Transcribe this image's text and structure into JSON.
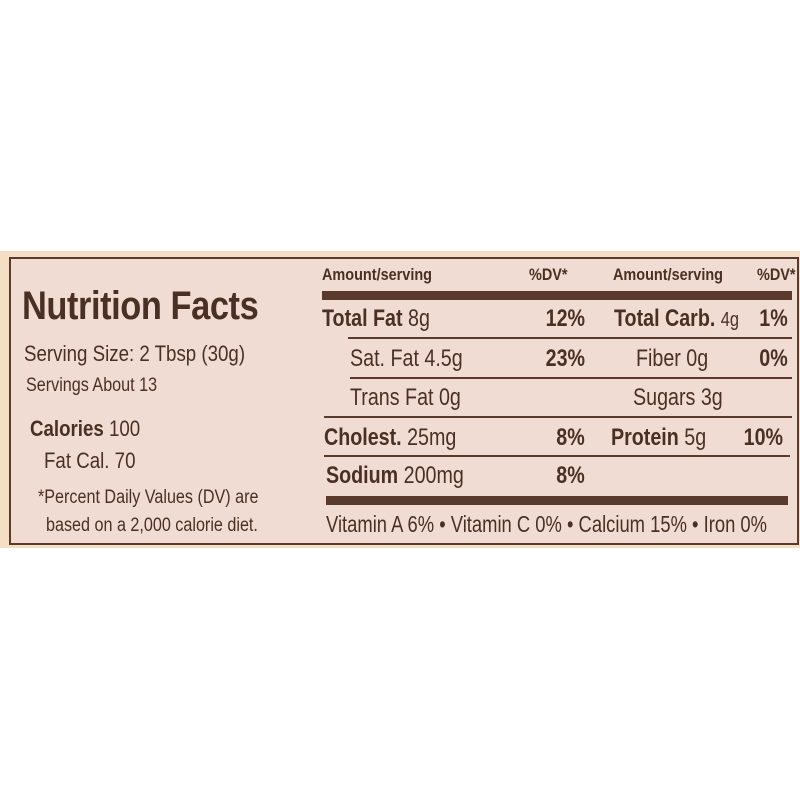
{
  "left": {
    "title": "Nutrition Facts",
    "serving_size": "Serving Size: 2 Tbsp (30g)",
    "servings": "Servings About 13",
    "calories_label": "Calories",
    "calories_value": "100",
    "fat_cal": "Fat Cal. 70",
    "footnote_1": "*Percent Daily Values (DV) are",
    "footnote_2": "based on a 2,000 calorie diet."
  },
  "headers": {
    "amount": "Amount/serving",
    "dv": "%DV*",
    "amount2": "Amount/serving",
    "dv2": "%DV*"
  },
  "rows": [
    {
      "name": "Total Fat",
      "amount": "8g",
      "dv": "12%",
      "name2": "Total Carb.",
      "amount2": "4g",
      "dv2": "1%"
    },
    {
      "name": "Sat. Fat 4.5g",
      "dv": "23%",
      "name2": "Fiber 0g",
      "dv2": "0%"
    },
    {
      "name": "Trans Fat 0g",
      "name2": "Sugars 3g"
    },
    {
      "name": "Cholest.",
      "amount": "25mg",
      "dv": "8%",
      "name2": "Protein",
      "amount2": "5g",
      "dv2": "10%"
    },
    {
      "name": "Sodium",
      "amount": "200mg",
      "dv": "8%"
    }
  ],
  "vitamins": "Vitamin A 6% • Vitamin C 0% • Calcium 15% • Iron 0%",
  "colors": {
    "ink": "#4a3024",
    "label_bg": "#f1dcd3",
    "package_bg": "#f5dfc4"
  }
}
